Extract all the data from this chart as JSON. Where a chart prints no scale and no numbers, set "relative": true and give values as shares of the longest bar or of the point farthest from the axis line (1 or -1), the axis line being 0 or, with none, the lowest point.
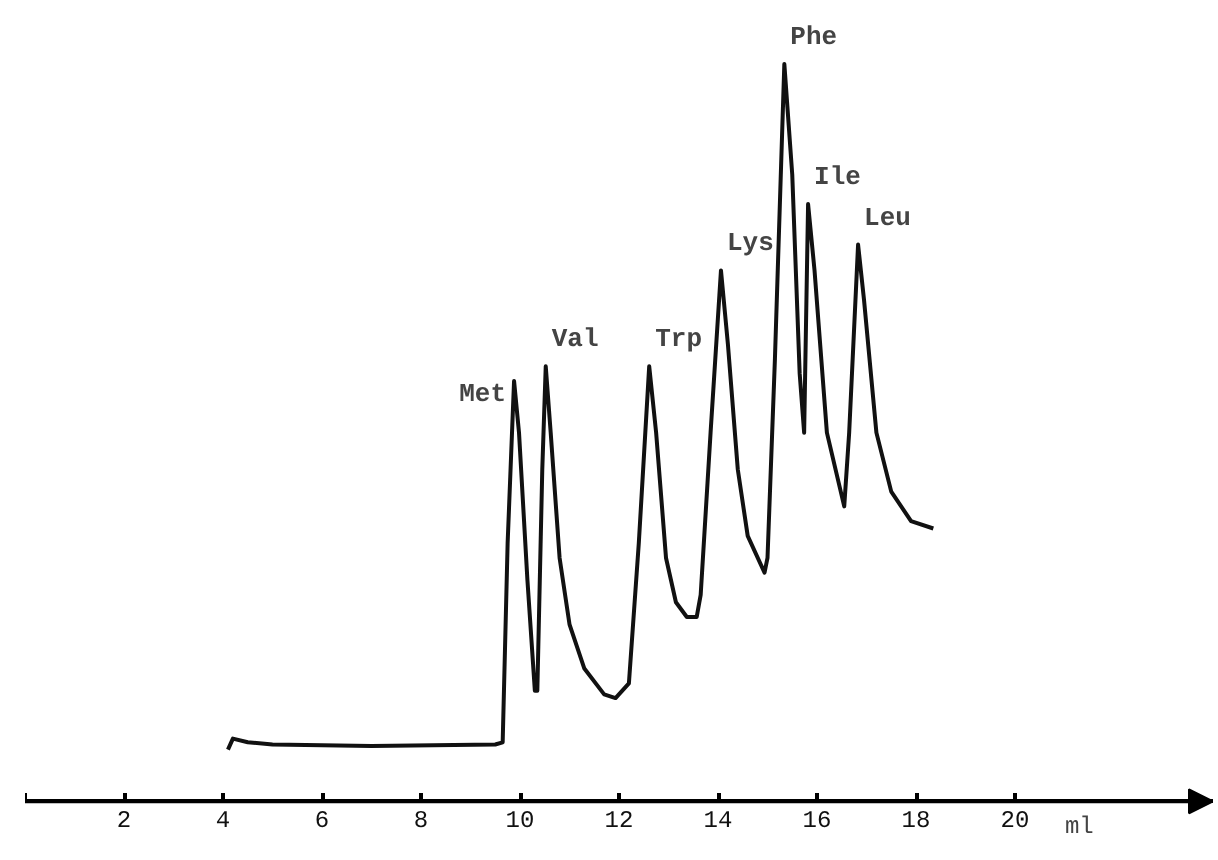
{
  "chart_data": {
    "type": "line",
    "relative": true,
    "color": "#111111",
    "line_style": "solid",
    "marker": "none",
    "grid": false,
    "tick_labels": "x",
    "xlabel": "ml",
    "xlim": [
      0,
      24
    ],
    "xticks": [
      {
        "value": 0,
        "label": null
      },
      2,
      4,
      6,
      8,
      10,
      12,
      14,
      16,
      18,
      20
    ],
    "x": [
      4.1,
      4.2,
      4.5,
      5,
      7,
      9.5,
      9.65,
      9.75,
      9.88,
      9.98,
      10.15,
      10.3,
      10.35,
      10.45,
      10.52,
      10.62,
      10.8,
      11.0,
      11.3,
      11.7,
      11.93,
      12.2,
      12.4,
      12.61,
      12.75,
      12.95,
      13.15,
      13.37,
      13.57,
      13.65,
      13.85,
      14.06,
      14.2,
      14.4,
      14.6,
      14.94,
      15.0,
      15.15,
      15.34,
      15.5,
      15.65,
      15.74,
      15.82,
      15.95,
      16.2,
      16.55,
      16.65,
      16.83,
      16.95,
      17.2,
      17.5,
      17.9,
      18.35
    ],
    "values": [
      0.07,
      0.085,
      0.08,
      0.077,
      0.075,
      0.077,
      0.08,
      0.35,
      0.57,
      0.5,
      0.3,
      0.15,
      0.15,
      0.45,
      0.59,
      0.5,
      0.33,
      0.24,
      0.18,
      0.145,
      0.14,
      0.16,
      0.35,
      0.59,
      0.5,
      0.33,
      0.27,
      0.25,
      0.25,
      0.28,
      0.5,
      0.72,
      0.62,
      0.45,
      0.36,
      0.31,
      0.33,
      0.6,
      1.0,
      0.85,
      0.58,
      0.5,
      0.81,
      0.72,
      0.5,
      0.4,
      0.5,
      0.755,
      0.68,
      0.5,
      0.42,
      0.38,
      0.37
    ],
    "annotations": [
      {
        "text": "Met",
        "x": 9.88,
        "y": 0.57
      },
      {
        "text": "Val",
        "x": 10.52,
        "y": 0.59
      },
      {
        "text": "Trp",
        "x": 12.61,
        "y": 0.59
      },
      {
        "text": "Lys",
        "x": 14.06,
        "y": 0.72
      },
      {
        "text": "Phe",
        "x": 15.34,
        "y": 1.0
      },
      {
        "text": "Ile",
        "x": 15.82,
        "y": 0.81
      },
      {
        "text": "Leu",
        "x": 16.83,
        "y": 0.755
      }
    ]
  }
}
